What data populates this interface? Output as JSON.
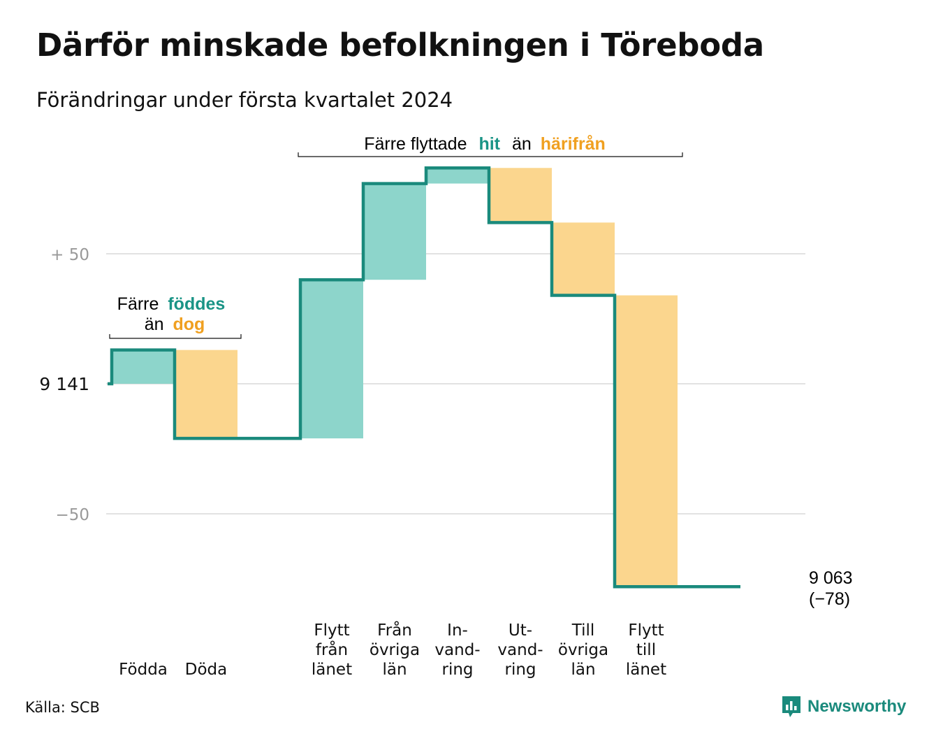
{
  "title": "Därför minskade befolkningen i Töreboda",
  "subtitle": "Förändringar under första kvartalet 2024",
  "source": "Källa: SCB",
  "brand": "Newsworthy",
  "brand_icon": "newsworthy-logo-icon",
  "colors": {
    "in": "#8dd5cb",
    "out": "#fbd68e",
    "line": "#1a8a7c",
    "accent_in": "#1a9486",
    "accent_out": "#f0a020",
    "grid": "#e2e2e2",
    "axis_label": "#999999"
  },
  "annotations": {
    "births_deaths": {
      "line1_prefix": "Färre",
      "line1_highlight": "föddes",
      "line2_prefix": "än",
      "line2_highlight": "dog"
    },
    "migration": {
      "prefix": "Färre flyttade",
      "highlight_in": "hit",
      "middle": "än",
      "highlight_out": "härifrån"
    }
  },
  "chart_data": {
    "type": "waterfall",
    "start_value": 9141,
    "start_label": "9  141",
    "end_value": 9063,
    "end_label": "9 063",
    "end_change_label": "(−78)",
    "yticks": [
      {
        "value": 50,
        "label": "+  50"
      },
      {
        "value": 0,
        "label": "9  141"
      },
      {
        "value": -50,
        "label": "−50"
      }
    ],
    "ylim": [
      -80,
      65
    ],
    "grid": true,
    "steps": [
      {
        "label": [
          "Födda"
        ],
        "change": 13,
        "direction": "in"
      },
      {
        "label": [
          "Döda"
        ],
        "change": -34,
        "direction": "out"
      },
      {
        "label": [],
        "change": 0,
        "direction": "none"
      },
      {
        "label": [
          "Flytt",
          "från",
          "länet"
        ],
        "change": 61,
        "direction": "in"
      },
      {
        "label": [
          "Från",
          "övriga",
          "län"
        ],
        "change": 37,
        "direction": "in"
      },
      {
        "label": [
          "In-",
          "vand-",
          "ring"
        ],
        "change": 6,
        "direction": "in"
      },
      {
        "label": [
          "Ut-",
          "vand-",
          "ring"
        ],
        "change": -21,
        "direction": "out"
      },
      {
        "label": [
          "Till",
          "övriga",
          "län"
        ],
        "change": -28,
        "direction": "out"
      },
      {
        "label": [
          "Flytt",
          "till",
          "länet"
        ],
        "change": -112,
        "direction": "out"
      },
      {
        "label": [],
        "change": 0,
        "direction": "none"
      }
    ]
  }
}
